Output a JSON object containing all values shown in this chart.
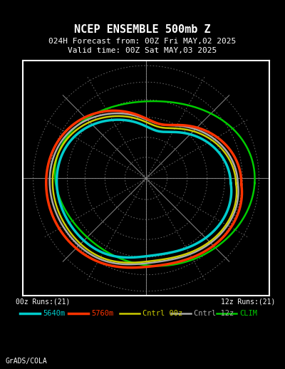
{
  "title_line1": "NCEP ENSEMBLE 500mb Z",
  "title_line2": "024H Forecast from: 00Z Fri MAY,02 2025",
  "title_line3": "Valid time: 00Z Sat MAY,03 2025",
  "background_color": "#000000",
  "plot_bg_color": "#000000",
  "border_color": "#ffffff",
  "title_color": "#ffffff",
  "label_color": "#ffffff",
  "footer_text": "GrADS/COLA",
  "footer_color": "#ffffff",
  "left_label": "00z Runs:(21)",
  "right_label": "12z Runs:(21)",
  "legend_items": [
    {
      "label": "5640m",
      "color": "#00cccc",
      "lw": 2.5
    },
    {
      "label": "5760m",
      "color": "#ff3300",
      "lw": 2.5
    },
    {
      "label": "Cntrl 00z",
      "color": "#cccc00",
      "lw": 1.8
    },
    {
      "label": "Cntrl 12z",
      "color": "#aaaaaa",
      "lw": 1.8
    },
    {
      "label": "CLIM",
      "color": "#00cc00",
      "lw": 1.8
    }
  ],
  "grid_color": "#888888",
  "dotted_grid_color": "#888888",
  "land_color": "#ffffff",
  "contour_5640_color": "#00cccc",
  "contour_5760_color": "#ff3300",
  "clim_color": "#00cc00",
  "cntrl_00z_color": "#cccc00",
  "cntrl_12z_color": "#aaaaaa",
  "figsize": [
    4.0,
    5.18
  ],
  "dpi": 100
}
